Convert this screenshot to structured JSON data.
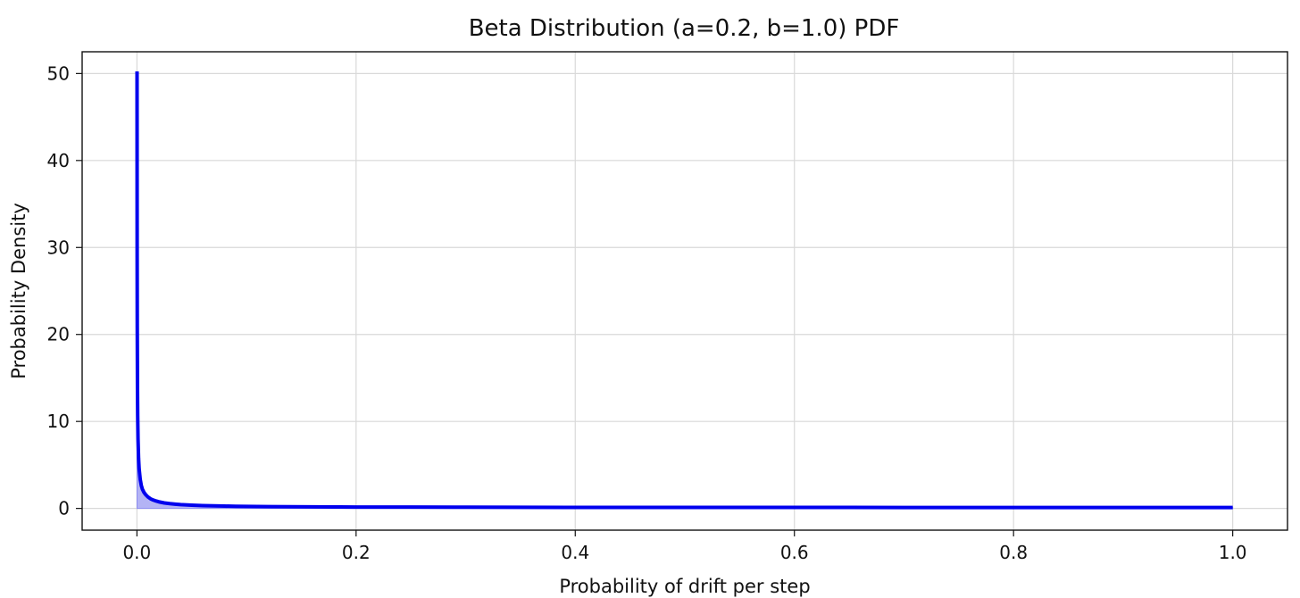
{
  "chart_data": {
    "type": "area",
    "title": "Beta Distribution (a=0.2, b=1.0) PDF",
    "xlabel": "Probability of drift per step",
    "ylabel": "Probability Density",
    "xlim": [
      -0.05,
      1.05
    ],
    "ylim": [
      -2.5,
      52.5
    ],
    "x_ticks": [
      0.0,
      0.2,
      0.4,
      0.6,
      0.8,
      1.0
    ],
    "x_tick_labels": [
      "0.0",
      "0.2",
      "0.4",
      "0.6",
      "0.8",
      "1.0"
    ],
    "y_ticks": [
      0,
      10,
      20,
      30,
      40,
      50
    ],
    "y_tick_labels": [
      "0",
      "10",
      "20",
      "30",
      "40",
      "50"
    ],
    "grid": true,
    "series": [
      {
        "x": [
          0.0001,
          0.0002,
          0.0003,
          0.0005,
          0.0007,
          0.001,
          0.0015,
          0.002,
          0.003,
          0.004,
          0.005,
          0.0065,
          0.008,
          0.01,
          0.0125,
          0.015,
          0.0175,
          0.02,
          0.025,
          0.03,
          0.035,
          0.04,
          0.05,
          0.06,
          0.07,
          0.08,
          0.09,
          0.1,
          0.12,
          0.14,
          0.16,
          0.18,
          0.2,
          0.25,
          0.3,
          0.35,
          0.4,
          0.45,
          0.5,
          0.55,
          0.6,
          0.65,
          0.7,
          0.75,
          0.8,
          0.85,
          0.9,
          0.95,
          1.0
        ],
        "y": [
          50.24,
          28.85,
          20.86,
          13.79,
          10.57,
          7.96,
          5.77,
          4.57,
          3.34,
          2.64,
          2.21,
          1.83,
          1.58,
          1.32,
          1.1,
          0.96,
          0.85,
          0.76,
          0.63,
          0.55,
          0.49,
          0.44,
          0.37,
          0.32,
          0.29,
          0.27,
          0.25,
          0.23,
          0.21,
          0.19,
          0.18,
          0.17,
          0.16,
          0.15,
          0.14,
          0.13,
          0.12,
          0.12,
          0.11,
          0.11,
          0.11,
          0.11,
          0.1,
          0.1,
          0.1,
          0.1,
          0.1,
          0.1,
          0.1
        ]
      }
    ],
    "colors": {
      "line": "#0000ee",
      "fill": "#b3b3f5",
      "fill_edge": "#8c8cf0"
    }
  }
}
